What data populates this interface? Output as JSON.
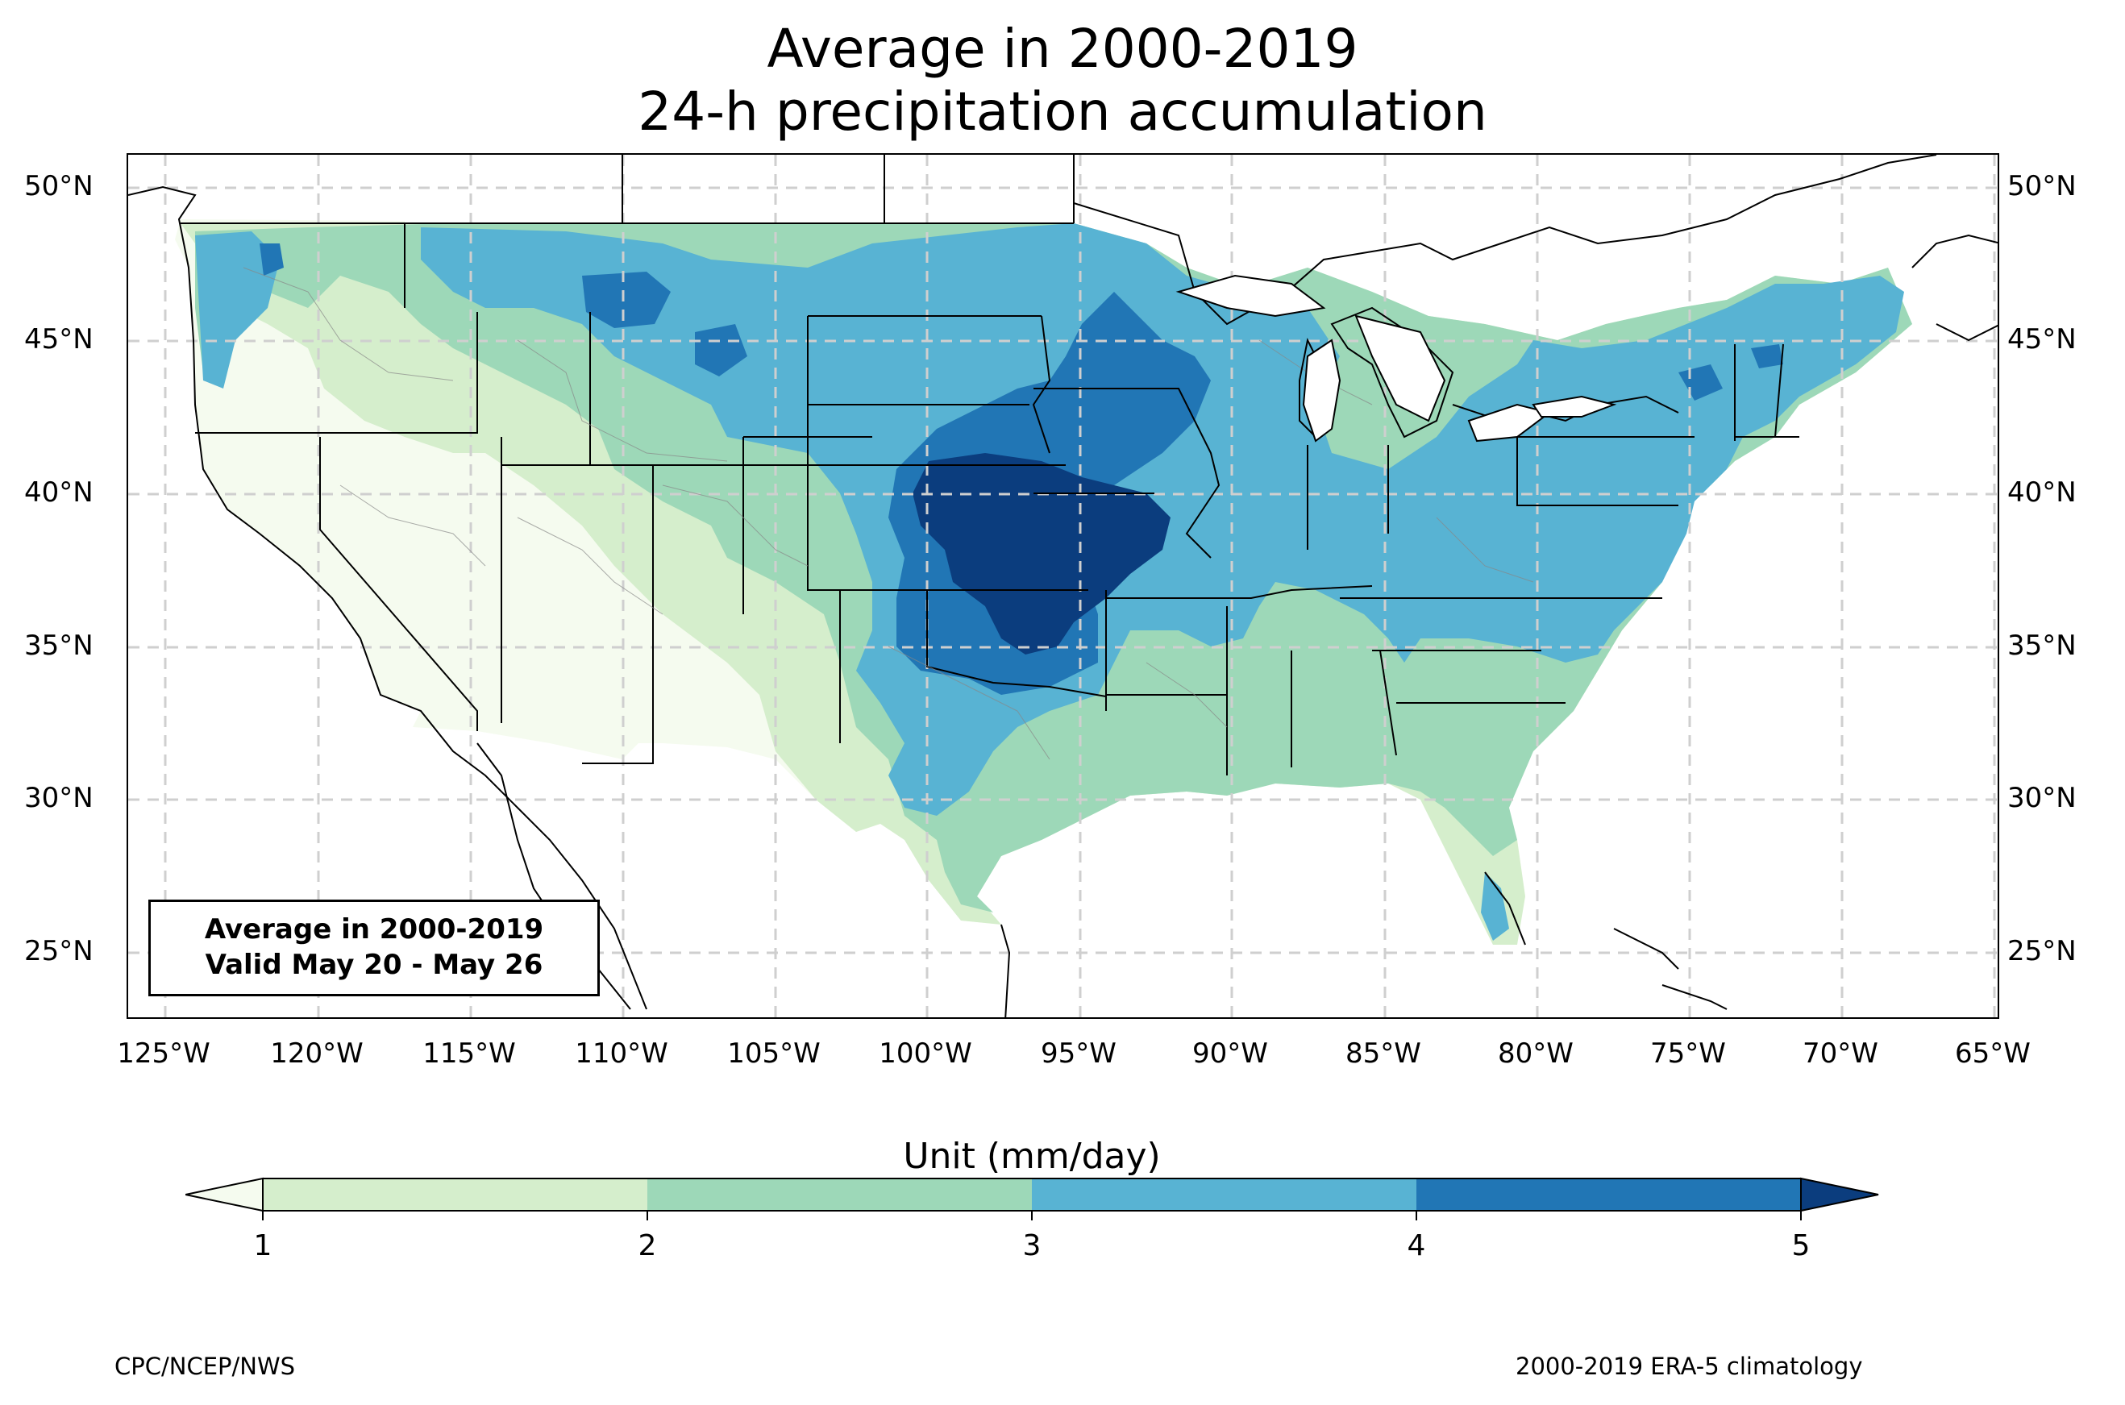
{
  "title_line1": "Average in 2000-2019",
  "title_line2": "24-h precipitation accumulation",
  "info_box": {
    "line1": "Average in 2000-2019",
    "line2": "Valid May 20 - May 26"
  },
  "colorbar": {
    "title": "Unit (mm/day)",
    "ticks": [
      "1",
      "2",
      "3",
      "4",
      "5"
    ],
    "colors": [
      "#d5eecc",
      "#9dd8b8",
      "#58b3d3",
      "#2176b5",
      "#0b3d7e"
    ],
    "under_color": "#f5fbef",
    "extend": "both"
  },
  "axes": {
    "lon_labels": [
      "125°W",
      "120°W",
      "115°W",
      "110°W",
      "105°W",
      "100°W",
      "95°W",
      "90°W",
      "85°W",
      "80°W",
      "75°W",
      "70°W",
      "65°W"
    ],
    "lat_labels": [
      "50°N",
      "45°N",
      "40°N",
      "35°N",
      "30°N",
      "25°N"
    ]
  },
  "footer_left": "CPC/NCEP/NWS",
  "footer_right": "2000-2019 ERA-5 climatology"
}
